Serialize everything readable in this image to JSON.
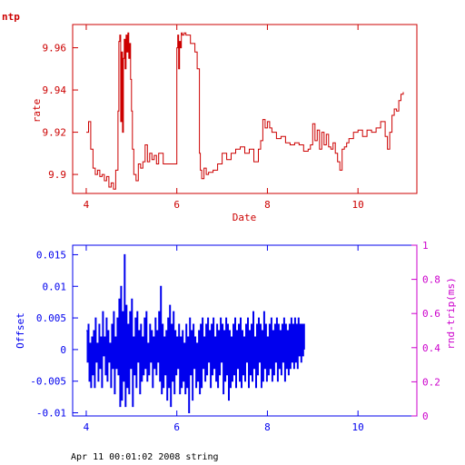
{
  "chart_data": [
    {
      "type": "line",
      "title": "ntp",
      "xlabel": "Date",
      "ylabel": "rate",
      "xlim": [
        3.7,
        11.3
      ],
      "ylim": [
        9.891,
        9.971
      ],
      "xticks": [
        "4",
        "6",
        "8",
        "10"
      ],
      "yticks": [
        "9.9",
        "9.92",
        "9.94",
        "9.96"
      ],
      "grid": false,
      "color": "#cc0000",
      "series": [
        {
          "x": [
            4.0,
            4.05,
            4.1,
            4.15,
            4.2,
            4.25,
            4.3,
            4.35,
            4.4,
            4.45,
            4.5,
            4.55,
            4.6,
            4.65,
            4.7,
            4.72,
            4.74,
            4.76,
            4.78,
            4.8,
            4.82,
            4.84,
            4.86,
            4.88,
            4.9,
            4.92,
            4.94,
            4.96,
            4.98,
            5.0,
            5.02,
            5.05,
            5.1,
            5.15,
            5.2,
            5.25,
            5.3,
            5.35,
            5.4,
            5.45,
            5.5,
            5.55,
            5.6,
            5.7,
            5.8,
            5.9,
            6.0,
            6.02,
            6.04,
            6.06,
            6.08,
            6.1,
            6.12,
            6.14,
            6.16,
            6.2,
            6.3,
            6.4,
            6.45,
            6.5,
            6.52,
            6.55,
            6.6,
            6.65,
            6.7,
            6.8,
            6.9,
            7.0,
            7.1,
            7.2,
            7.3,
            7.4,
            7.5,
            7.6,
            7.7,
            7.8,
            7.85,
            7.9,
            7.95,
            8.0,
            8.05,
            8.1,
            8.2,
            8.3,
            8.4,
            8.5,
            8.6,
            8.7,
            8.8,
            8.9,
            8.95,
            9.0,
            9.05,
            9.1,
            9.15,
            9.2,
            9.25,
            9.3,
            9.35,
            9.4,
            9.45,
            9.5,
            9.55,
            9.6,
            9.65,
            9.7,
            9.75,
            9.8,
            9.9,
            10.0,
            10.1,
            10.2,
            10.3,
            10.4,
            10.5,
            10.6,
            10.65,
            10.7,
            10.75,
            10.8,
            10.85,
            10.9,
            10.95,
            11.0
          ],
          "values": [
            9.92,
            9.925,
            9.912,
            9.903,
            9.9,
            9.902,
            9.899,
            9.9,
            9.897,
            9.899,
            9.894,
            9.896,
            9.893,
            9.902,
            9.93,
            9.963,
            9.966,
            9.925,
            9.958,
            9.92,
            9.955,
            9.964,
            9.95,
            9.966,
            9.958,
            9.967,
            9.955,
            9.962,
            9.945,
            9.93,
            9.912,
            9.9,
            9.897,
            9.905,
            9.903,
            9.906,
            9.914,
            9.906,
            9.91,
            9.907,
            9.909,
            9.905,
            9.91,
            9.905,
            9.905,
            9.905,
            9.96,
            9.966,
            9.95,
            9.963,
            9.96,
            9.967,
            9.966,
            9.966,
            9.967,
            9.966,
            9.962,
            9.958,
            9.95,
            9.91,
            9.902,
            9.898,
            9.903,
            9.9,
            9.901,
            9.902,
            9.905,
            9.91,
            9.907,
            9.91,
            9.912,
            9.913,
            9.91,
            9.912,
            9.906,
            9.912,
            9.916,
            9.926,
            9.922,
            9.925,
            9.922,
            9.92,
            9.917,
            9.918,
            9.915,
            9.914,
            9.915,
            9.914,
            9.911,
            9.912,
            9.914,
            9.924,
            9.916,
            9.921,
            9.912,
            9.92,
            9.914,
            9.919,
            9.913,
            9.912,
            9.915,
            9.91,
            9.906,
            9.902,
            9.912,
            9.913,
            9.915,
            9.917,
            9.92,
            9.921,
            9.918,
            9.921,
            9.92,
            9.922,
            9.925,
            9.918,
            9.912,
            9.92,
            9.928,
            9.931,
            9.93,
            9.935,
            9.938,
            9.939
          ]
        }
      ]
    },
    {
      "type": "line",
      "xlabel": "",
      "ylabel": "Offset",
      "ylabel_right": "rnd-trip(ms)",
      "xlim": [
        3.7,
        11.3
      ],
      "ylim": [
        -0.0105,
        0.0165
      ],
      "ylim_right": [
        0,
        1
      ],
      "xticks": [
        "4",
        "6",
        "8",
        "10"
      ],
      "yticks": [
        "-0.01",
        "-0.005",
        "0",
        "0.005",
        "0.01",
        "0.015"
      ],
      "yticks_right": [
        "0",
        "0.2",
        "0.4",
        "0.6",
        "0.8",
        "1"
      ],
      "grid": false,
      "color": "#0000ee",
      "right_axis_color": "#cc00cc",
      "series": [
        {
          "x_start": 4.0,
          "x_step": 0.02,
          "values": [
            0.003,
            -0.002,
            0.004,
            -0.005,
            0.001,
            -0.006,
            0.002,
            -0.004,
            0.003,
            -0.006,
            0.005,
            -0.002,
            0.001,
            -0.005,
            0.004,
            -0.003,
            0.002,
            -0.006,
            0.006,
            -0.001,
            0.002,
            -0.004,
            0.005,
            -0.005,
            0.003,
            -0.002,
            0.001,
            -0.006,
            0.004,
            -0.003,
            0.006,
            -0.007,
            0.002,
            -0.003,
            0.005,
            -0.004,
            0.008,
            -0.009,
            0.01,
            -0.008,
            0.006,
            -0.005,
            0.015,
            -0.009,
            0.007,
            -0.006,
            0.004,
            -0.007,
            0.006,
            -0.003,
            0.008,
            -0.009,
            0.002,
            -0.004,
            0.005,
            -0.006,
            0.006,
            -0.002,
            0.003,
            -0.007,
            0.004,
            -0.005,
            0.002,
            -0.004,
            0.005,
            -0.003,
            0.006,
            -0.005,
            0.001,
            -0.004,
            0.004,
            -0.002,
            0.003,
            -0.006,
            0.002,
            -0.003,
            0.005,
            -0.004,
            0.003,
            -0.002,
            0.006,
            -0.005,
            0.01,
            -0.007,
            0.004,
            -0.006,
            0.002,
            -0.004,
            0.003,
            -0.008,
            0.005,
            -0.006,
            0.007,
            -0.009,
            0.004,
            -0.005,
            0.006,
            -0.007,
            0.003,
            -0.004,
            0.002,
            -0.003,
            0.004,
            -0.007,
            0.002,
            -0.006,
            0.003,
            -0.005,
            0.001,
            -0.007,
            0.004,
            -0.006,
            0.002,
            -0.01,
            0.005,
            -0.004,
            0.003,
            -0.008,
            0.004,
            -0.003,
            0.002,
            -0.006,
            0.001,
            -0.005,
            0.003,
            -0.007,
            0.004,
            -0.006,
            0.005,
            -0.003,
            0.002,
            -0.005,
            0.004,
            -0.004,
            0.005,
            -0.002,
            0.003,
            -0.006,
            0.004,
            -0.004,
            0.005,
            -0.003,
            0.002,
            -0.005,
            0.004,
            -0.006,
            0.003,
            -0.004,
            0.005,
            -0.002,
            0.004,
            -0.007,
            0.003,
            -0.005,
            0.005,
            -0.004,
            0.004,
            -0.008,
            0.003,
            -0.006,
            0.002,
            -0.005,
            0.004,
            -0.004,
            0.005,
            -0.006,
            0.003,
            -0.003,
            0.004,
            -0.005,
            0.005,
            -0.006,
            0.003,
            -0.004,
            0.002,
            -0.005,
            0.004,
            -0.002,
            0.005,
            -0.006,
            0.003,
            -0.004,
            0.004,
            -0.005,
            0.006,
            -0.003,
            0.002,
            -0.006,
            0.004,
            -0.004,
            0.005,
            -0.002,
            0.004,
            -0.006,
            0.003,
            -0.005,
            0.006,
            -0.003,
            0.004,
            -0.005,
            0.002,
            -0.004,
            0.004,
            -0.003,
            0.005,
            -0.005,
            0.003,
            -0.004,
            0.004,
            -0.002,
            0.005,
            -0.005,
            0.004,
            -0.003,
            0.003,
            -0.004,
            0.004,
            -0.002,
            0.005,
            -0.005,
            0.004,
            -0.003,
            0.003,
            -0.004,
            0.004,
            -0.003,
            0.005,
            -0.002,
            0.004,
            -0.003,
            0.005,
            -0.002,
            0.004,
            -0.003,
            0.005,
            -0.001,
            0.004,
            -0.002,
            0.004,
            -0.001,
            0.004,
            0.0
          ]
        }
      ]
    }
  ],
  "footer": {
    "text": "Apr 11 00:01:02 2008 string"
  }
}
